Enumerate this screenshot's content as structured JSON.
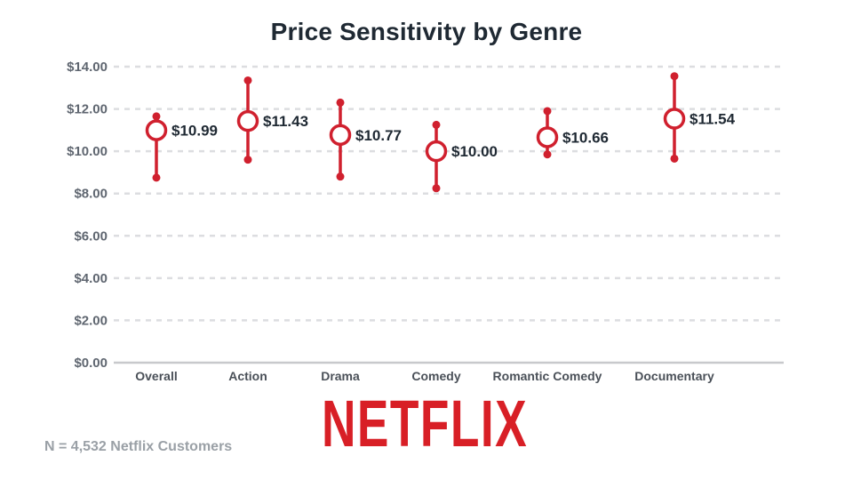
{
  "title": "Price Sensitivity by Genre",
  "footnote": "N = 4,532 Netflix Customers",
  "logo_text": "NETFLIX",
  "colors": {
    "accent": "#d0202e",
    "grid": "#dcdde0",
    "axis": "#c8c9cc",
    "text": "#1f2933",
    "muted": "#9aa0a6"
  },
  "chart_data": {
    "type": "range-dot",
    "title": "Price Sensitivity by Genre",
    "xlabel": "",
    "ylabel": "",
    "ylim": [
      0,
      14
    ],
    "yticks": [
      0,
      2,
      4,
      6,
      8,
      10,
      12,
      14
    ],
    "ytick_labels": [
      "$0.00",
      "$2.00",
      "$4.00",
      "$6.00",
      "$8.00",
      "$10.00",
      "$12.00",
      "$14.00"
    ],
    "grid": true,
    "categories": [
      "Overall",
      "Action",
      "Drama",
      "Comedy",
      "Romantic Comedy",
      "Documentary"
    ],
    "values": [
      10.99,
      11.43,
      10.77,
      10.0,
      10.66,
      11.54
    ],
    "labels": [
      "$10.99",
      "$11.43",
      "$10.77",
      "$10.00",
      "$10.66",
      "$11.54"
    ],
    "highs": [
      11.65,
      13.35,
      12.3,
      11.25,
      11.9,
      13.55
    ],
    "lows": [
      8.75,
      9.6,
      8.8,
      8.25,
      9.85,
      9.65
    ]
  }
}
